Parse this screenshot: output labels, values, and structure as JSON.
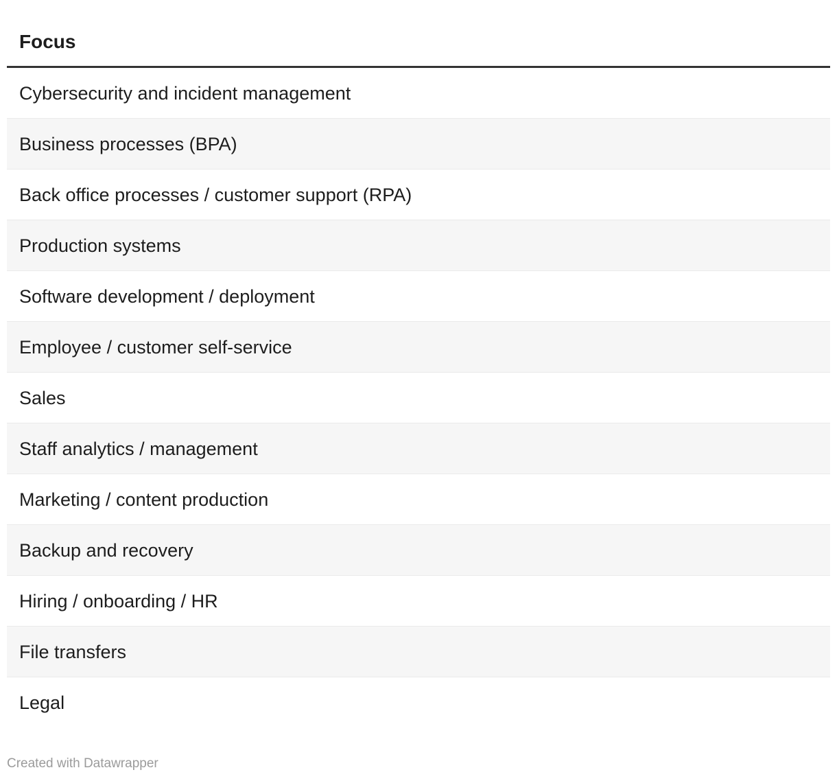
{
  "chart_data": {
    "type": "table",
    "columns": [
      "Focus"
    ],
    "rows": [
      [
        "Cybersecurity and incident management"
      ],
      [
        "Business processes (BPA)"
      ],
      [
        "Back office processes / customer support (RPA)"
      ],
      [
        "Production systems"
      ],
      [
        "Software development / deployment"
      ],
      [
        "Employee / customer self-service"
      ],
      [
        "Sales"
      ],
      [
        "Staff analytics / management"
      ],
      [
        "Marketing / content production"
      ],
      [
        "Backup and recovery"
      ],
      [
        "Hiring / onboarding / HR"
      ],
      [
        "File transfers"
      ],
      [
        "Legal"
      ]
    ],
    "striped": true,
    "legend_position": "none",
    "grid": false
  },
  "footer": {
    "attribution": "Created with Datawrapper"
  },
  "colors": {
    "background": "#ffffff",
    "text": "#1d1d1d",
    "stripe": "#f6f6f6",
    "row_border": "#eaeaea",
    "header_rule": "#333333",
    "footer_text": "#9b9b9b"
  }
}
